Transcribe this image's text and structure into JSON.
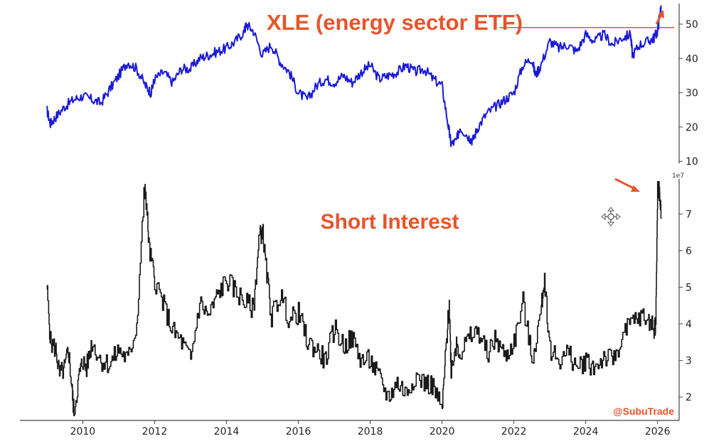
{
  "chart_data": [
    {
      "type": "line",
      "title": "XLE (energy sector ETF)",
      "color": "#1a1ad6",
      "yticks": [
        10,
        20,
        30,
        40,
        50
      ],
      "ylim": [
        9,
        56
      ],
      "reference_line": {
        "value": 49,
        "color": "#e8542a"
      },
      "annotation": "upward arrow at latest value",
      "x": [
        2009.0,
        2009.1,
        2009.25,
        2009.5,
        2009.75,
        2010.0,
        2010.25,
        2010.5,
        2010.75,
        2011.0,
        2011.25,
        2011.5,
        2011.75,
        2011.9,
        2012.0,
        2012.25,
        2012.5,
        2012.75,
        2013.0,
        2013.25,
        2013.5,
        2013.75,
        2014.0,
        2014.25,
        2014.5,
        2014.55,
        2014.75,
        2015.0,
        2015.25,
        2015.5,
        2015.75,
        2016.0,
        2016.25,
        2016.5,
        2016.75,
        2017.0,
        2017.25,
        2017.5,
        2017.75,
        2018.0,
        2018.25,
        2018.5,
        2018.75,
        2019.0,
        2019.25,
        2019.5,
        2019.75,
        2020.0,
        2020.18,
        2020.25,
        2020.4,
        2020.5,
        2020.75,
        2020.85,
        2021.0,
        2021.25,
        2021.5,
        2021.75,
        2022.0,
        2022.25,
        2022.5,
        2022.6,
        2022.75,
        2023.0,
        2023.25,
        2023.5,
        2023.75,
        2024.0,
        2024.25,
        2024.5,
        2024.75,
        2025.0,
        2025.25,
        2025.3,
        2025.5,
        2025.75,
        2025.9,
        2026.0,
        2026.05,
        2026.1
      ],
      "y": [
        25,
        21,
        23,
        26,
        28,
        29,
        28,
        27,
        31,
        35,
        39,
        37,
        32,
        30,
        34,
        36,
        33,
        37,
        37,
        40,
        41,
        42,
        43,
        45,
        48,
        50,
        48,
        41,
        44,
        39,
        36,
        30,
        28,
        32,
        34,
        33,
        35,
        33,
        36,
        38,
        34,
        35,
        36,
        38,
        36,
        37,
        34,
        32,
        20,
        15,
        16,
        20,
        17,
        16,
        20,
        24,
        26,
        28,
        30,
        38,
        40,
        35,
        38,
        45,
        43,
        44,
        42,
        47,
        45,
        47,
        44,
        46,
        47,
        41,
        44,
        45,
        46,
        48,
        52,
        55
      ],
      "xlim": [
        2008.25,
        2026.6
      ]
    },
    {
      "type": "line",
      "title": "Short Interest",
      "color": "#1a1a1a",
      "multiplier_label": "1e7",
      "yticks": [
        2,
        3,
        4,
        5,
        6,
        7
      ],
      "ylim": [
        1.4,
        7.9
      ],
      "annotation": "arrow pointing to latest spike",
      "x": [
        2009.0,
        2009.1,
        2009.25,
        2009.35,
        2009.5,
        2009.6,
        2009.7,
        2009.75,
        2009.9,
        2010.0,
        2010.1,
        2010.25,
        2010.5,
        2010.75,
        2011.0,
        2011.25,
        2011.5,
        2011.7,
        2011.75,
        2011.85,
        2012.0,
        2012.25,
        2012.5,
        2012.75,
        2013.0,
        2013.25,
        2013.5,
        2013.75,
        2014.0,
        2014.25,
        2014.5,
        2014.75,
        2014.9,
        2015.0,
        2015.1,
        2015.25,
        2015.5,
        2015.75,
        2016.0,
        2016.25,
        2016.5,
        2016.75,
        2017.0,
        2017.25,
        2017.5,
        2017.75,
        2018.0,
        2018.25,
        2018.5,
        2018.75,
        2019.0,
        2019.25,
        2019.5,
        2019.75,
        2020.0,
        2020.1,
        2020.2,
        2020.25,
        2020.4,
        2020.5,
        2020.75,
        2021.0,
        2021.25,
        2021.5,
        2021.75,
        2022.0,
        2022.25,
        2022.5,
        2022.75,
        2022.85,
        2023.0,
        2023.25,
        2023.5,
        2023.75,
        2024.0,
        2024.25,
        2024.5,
        2024.75,
        2025.0,
        2025.25,
        2025.5,
        2025.75,
        2025.9,
        2025.95,
        2026.0,
        2026.05,
        2026.1
      ],
      "y": [
        5.0,
        3.5,
        3.3,
        2.6,
        2.8,
        3.3,
        2.2,
        1.6,
        2.6,
        3.0,
        2.8,
        3.5,
        3.0,
        2.9,
        3.3,
        3.0,
        4.0,
        7.5,
        7.6,
        6.0,
        5.2,
        4.5,
        3.8,
        3.5,
        3.0,
        4.6,
        4.2,
        4.8,
        5.2,
        4.9,
        4.6,
        4.4,
        6.3,
        6.6,
        5.5,
        4.2,
        4.8,
        4.1,
        4.3,
        3.5,
        3.3,
        3.0,
        3.9,
        3.4,
        3.6,
        3.0,
        3.0,
        2.5,
        2.0,
        2.4,
        2.1,
        2.6,
        2.4,
        2.3,
        1.6,
        3.2,
        4.6,
        2.8,
        3.5,
        3.2,
        3.6,
        3.8,
        3.2,
        3.6,
        3.1,
        3.5,
        4.6,
        3.0,
        4.3,
        5.3,
        3.3,
        3.0,
        3.2,
        2.8,
        3.0,
        2.8,
        3.1,
        3.0,
        3.6,
        4.0,
        4.2,
        4.1,
        3.9,
        4.0,
        7.7,
        7.6,
        6.9
      ],
      "xlim": [
        2008.25,
        2026.6
      ]
    }
  ],
  "xaxis": {
    "ticks": [
      "2010",
      "2012",
      "2014",
      "2016",
      "2018",
      "2020",
      "2022",
      "2024",
      "2026"
    ]
  },
  "watermark": "@SubuTrade",
  "accent_color": "#e8542a"
}
